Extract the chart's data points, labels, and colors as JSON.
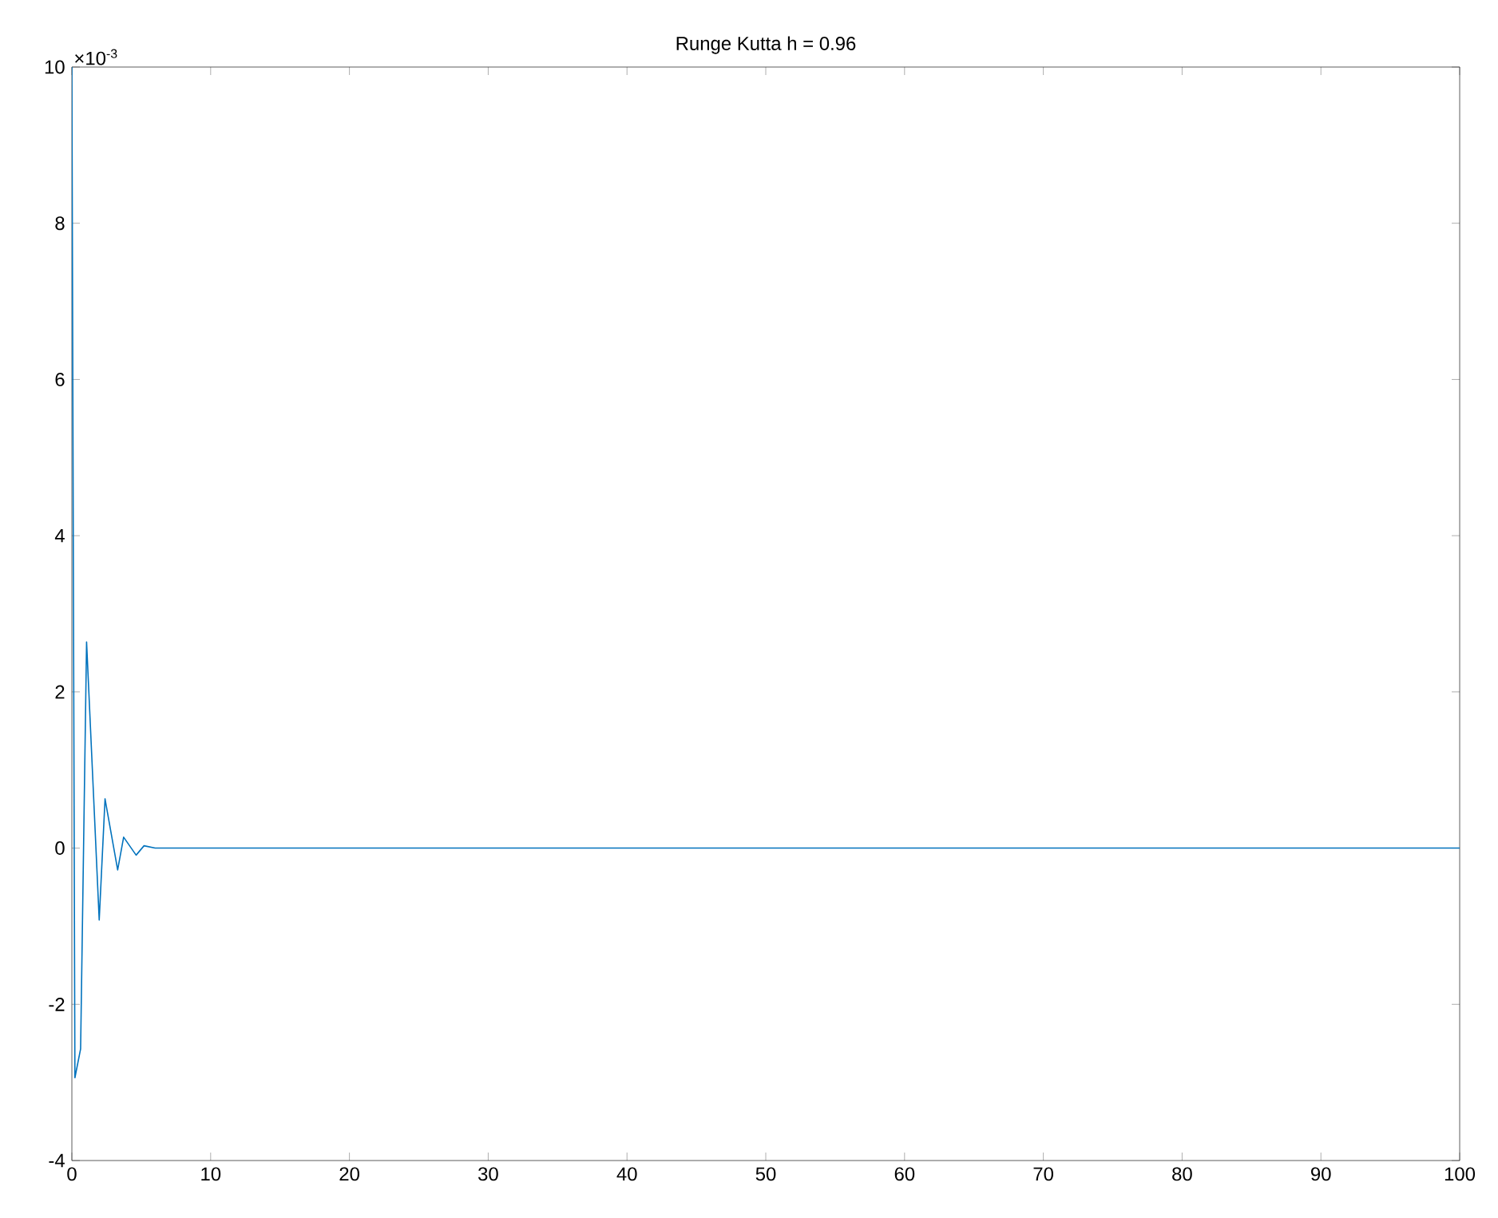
{
  "chart_data": {
    "type": "line",
    "title": "Runge Kutta h = 0.96",
    "x": [
      0,
      0.22,
      0.63,
      1.06,
      1.97,
      2.39,
      3.3,
      3.73,
      4.63,
      5.2,
      6,
      100
    ],
    "series": [
      {
        "color": "#0072bd",
        "values": [
          10,
          -2.94,
          -2.57,
          2.64,
          -0.92,
          0.63,
          -0.28,
          0.14,
          -0.09,
          0.03,
          0,
          0
        ]
      }
    ],
    "xlim": [
      0,
      100
    ],
    "xticks": [
      0,
      10,
      20,
      30,
      40,
      50,
      60,
      70,
      80,
      90,
      100
    ],
    "ylim": [
      -4,
      10
    ],
    "yticks": [
      -4,
      -2,
      0,
      2,
      4,
      6,
      8,
      10
    ],
    "annotations": [
      "×10$^{-3}$"
    ],
    "grid": false,
    "marker": "none",
    "line_style": "solid"
  }
}
